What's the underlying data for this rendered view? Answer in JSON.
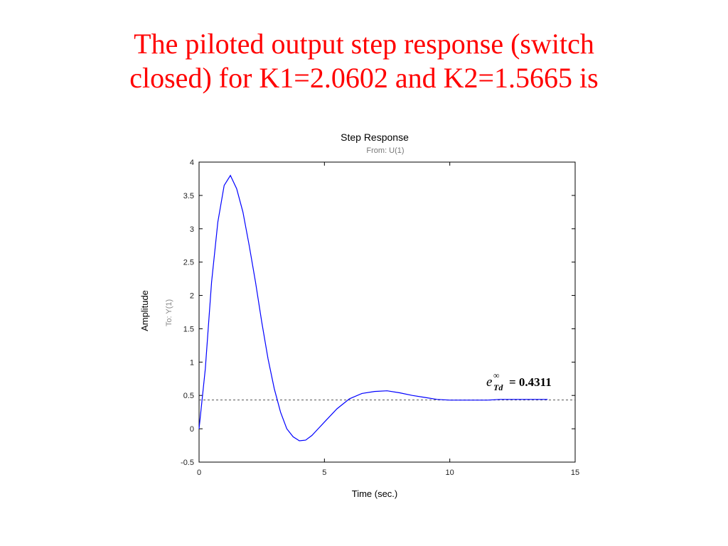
{
  "slide": {
    "title_line1": "The piloted output step response (switch",
    "title_line2": "closed) for K1=2.0602 and K2=1.5665 is",
    "title_color": "#ff0000"
  },
  "chart_data": {
    "type": "line",
    "title": "Step Response",
    "subtitle": "From: U(1)",
    "xlabel": "Time (sec.)",
    "ylabel": "Amplitude",
    "output_label": "To: Y(1)",
    "xlim": [
      0,
      15
    ],
    "ylim": [
      -0.5,
      4
    ],
    "xticks": [
      0,
      5,
      10,
      15
    ],
    "yticks": [
      -0.5,
      0,
      0.5,
      1,
      1.5,
      2,
      2.5,
      3,
      3.5,
      4
    ],
    "grid": false,
    "line_color": "#0000ff",
    "reference_line": {
      "y": 0.4311,
      "style": "dashed",
      "color": "#555555"
    },
    "annotation": {
      "symbol": "e",
      "superscript": "∞",
      "subscript": "Td",
      "value_text": "= 0.4311"
    },
    "series": [
      {
        "x": [
          0,
          0.25,
          0.5,
          0.75,
          1.0,
          1.25,
          1.5,
          1.75,
          2.0,
          2.25,
          2.5,
          2.75,
          3.0,
          3.25,
          3.5,
          3.75,
          4.0,
          4.25,
          4.5,
          4.75,
          5.0,
          5.5,
          6.0,
          6.5,
          7.0,
          7.5,
          8.0,
          8.5,
          9.0,
          9.5,
          10.0,
          10.5,
          11.0,
          11.5,
          12.0,
          12.5,
          13.0,
          13.5,
          13.9
        ],
        "y": [
          0.0,
          0.9,
          2.2,
          3.1,
          3.65,
          3.8,
          3.6,
          3.25,
          2.75,
          2.2,
          1.6,
          1.05,
          0.6,
          0.25,
          0.0,
          -0.12,
          -0.18,
          -0.17,
          -0.1,
          0.0,
          0.1,
          0.3,
          0.45,
          0.53,
          0.56,
          0.57,
          0.54,
          0.5,
          0.47,
          0.44,
          0.43,
          0.43,
          0.43,
          0.43,
          0.44,
          0.44,
          0.44,
          0.44,
          0.44
        ]
      }
    ]
  }
}
